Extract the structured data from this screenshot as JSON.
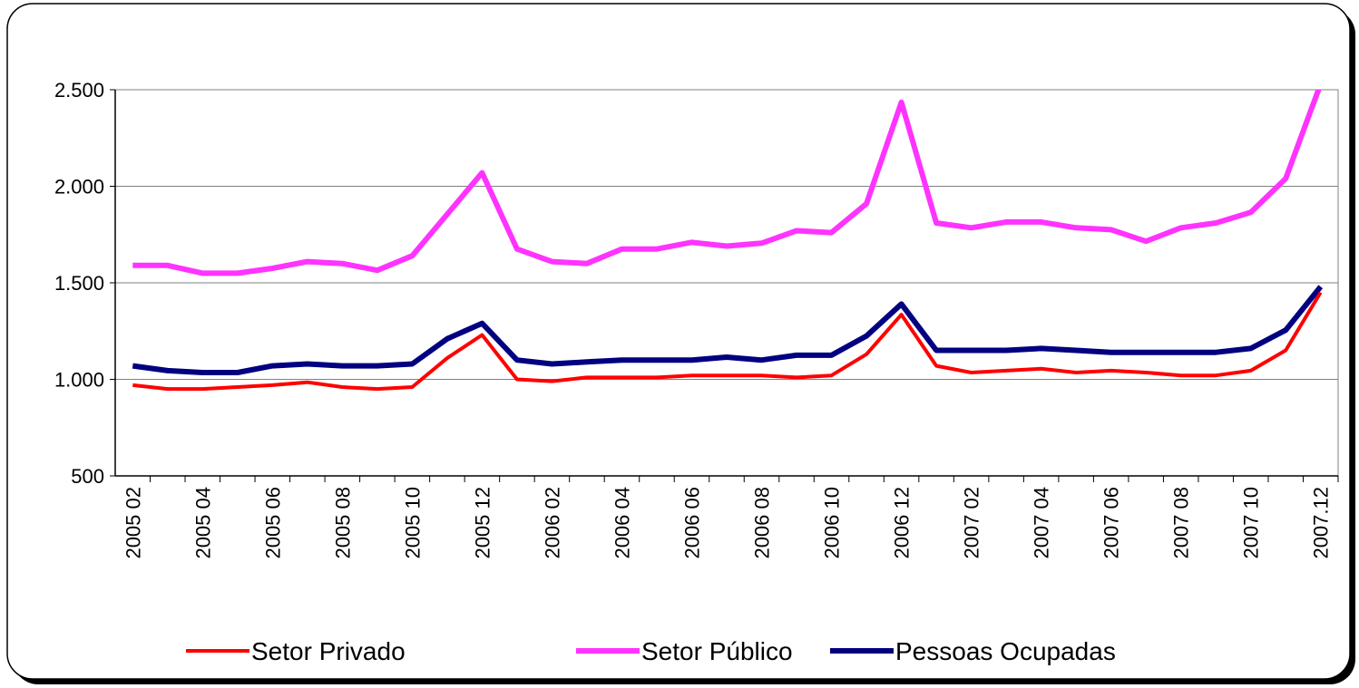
{
  "chart_data": {
    "type": "line",
    "categories": [
      "2005 02",
      null,
      "2005 04",
      null,
      "2005 06",
      null,
      "2005 08",
      null,
      "2005 10",
      null,
      "2005 12",
      null,
      "2006 02",
      null,
      "2006 04",
      null,
      "2006 06",
      null,
      "2006 08",
      null,
      "2006 10",
      null,
      "2006 12",
      null,
      "2007 02",
      null,
      "2007 04",
      null,
      "2007 06",
      null,
      "2007 08",
      null,
      "2007 10",
      null,
      "2007.12"
    ],
    "series": [
      {
        "name": "Setor Privado",
        "color": "#ff0000",
        "values": [
          970,
          950,
          950,
          960,
          970,
          985,
          960,
          950,
          960,
          1110,
          1230,
          1000,
          990,
          1010,
          1010,
          1010,
          1020,
          1020,
          1020,
          1010,
          1020,
          1130,
          1335,
          1070,
          1035,
          1045,
          1055,
          1035,
          1045,
          1035,
          1020,
          1020,
          1045,
          1150,
          1450
        ]
      },
      {
        "name": "Setor Público",
        "color": "#ff33ff",
        "values": [
          1590,
          1590,
          1550,
          1550,
          1575,
          1610,
          1600,
          1565,
          1640,
          1855,
          2070,
          1675,
          1610,
          1600,
          1675,
          1675,
          1710,
          1690,
          1705,
          1770,
          1760,
          1910,
          2435,
          1810,
          1785,
          1815,
          1815,
          1785,
          1775,
          1715,
          1785,
          1810,
          1865,
          2040,
          2530
        ]
      },
      {
        "name": "Pessoas Ocupadas",
        "color": "#000080",
        "values": [
          1070,
          1045,
          1035,
          1035,
          1070,
          1080,
          1070,
          1070,
          1080,
          1210,
          1290,
          1100,
          1080,
          1090,
          1100,
          1100,
          1100,
          1115,
          1100,
          1125,
          1125,
          1225,
          1390,
          1150,
          1150,
          1150,
          1160,
          1150,
          1140,
          1140,
          1140,
          1140,
          1160,
          1255,
          1480
        ]
      }
    ],
    "ylim": [
      500,
      2500
    ],
    "yticks": [
      500,
      {
        "value": 1000,
        "label": "1.000"
      },
      {
        "value": 1500,
        "label": "1.500"
      },
      {
        "value": 2000,
        "label": "2.000"
      },
      {
        "value": 2500,
        "label": "2.500"
      }
    ],
    "grid": true,
    "legend": "bottom"
  }
}
